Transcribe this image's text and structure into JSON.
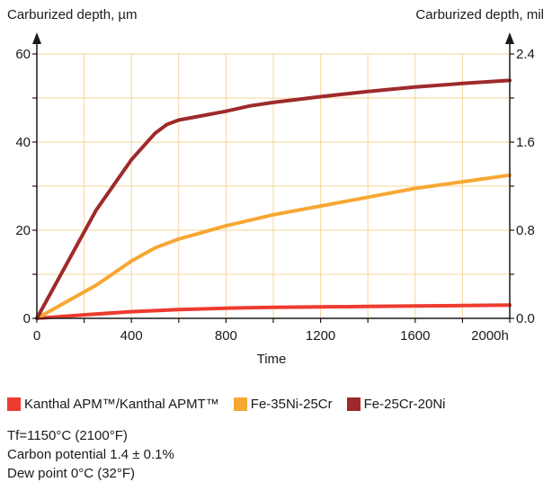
{
  "chart_data": {
    "type": "line",
    "xlabel": "Time",
    "x_unit_suffix": "h",
    "ylabel_left": "Carburized depth, µm",
    "ylabel_right": "Carburized depth, mil",
    "xlim": [
      0,
      2000
    ],
    "ylim": [
      0,
      60
    ],
    "ylim_right": [
      0,
      2.4
    ],
    "x_ticks": [
      0,
      400,
      800,
      1200,
      1600,
      2000
    ],
    "x_tick_labels": [
      "0",
      "400",
      "800",
      "1200",
      "1600",
      "2000h"
    ],
    "y_ticks": [
      0,
      20,
      40,
      60
    ],
    "y_tick_labels": [
      "0",
      "20",
      "40",
      "60"
    ],
    "y_ticks_right": [
      0,
      0.8,
      1.6,
      2.4
    ],
    "y_tick_labels_right": [
      "0.0",
      "0.8",
      "1.6",
      "2.4"
    ],
    "x_gridlines": [
      0,
      200,
      400,
      600,
      800,
      1000,
      1200,
      1400,
      1600,
      1800,
      2000
    ],
    "y_gridlines": [
      0,
      10,
      20,
      30,
      40,
      50,
      60
    ],
    "grid": true,
    "grid_color": "#f6d49a",
    "axis_color": "#1a1a1a",
    "legend_position": "bottom",
    "series": [
      {
        "name": "Kanthal APM™/Kanthal APMT™",
        "color": "#ef3b2f",
        "x": [
          0,
          200,
          400,
          600,
          800,
          1000,
          1200,
          1400,
          1600,
          1800,
          2000
        ],
        "y": [
          0,
          0.8,
          1.5,
          2.0,
          2.3,
          2.5,
          2.6,
          2.7,
          2.8,
          2.9,
          3.0
        ]
      },
      {
        "name": "Fe-35Ni-25Cr",
        "color": "#f7a833",
        "x": [
          0,
          250,
          400,
          500,
          600,
          800,
          1000,
          1200,
          1400,
          1600,
          1800,
          2000
        ],
        "y": [
          0,
          7.5,
          13,
          16,
          18,
          21,
          23.5,
          25.5,
          27.5,
          29.5,
          31,
          32.5
        ]
      },
      {
        "name": "Fe-25Cr-20Ni",
        "color": "#9e2a2b",
        "x": [
          0,
          250,
          400,
          500,
          550,
          600,
          700,
          800,
          900,
          1000,
          1200,
          1400,
          1600,
          1800,
          2000
        ],
        "y": [
          0,
          24.5,
          36,
          42,
          44,
          45,
          46,
          47,
          48.2,
          49,
          50.3,
          51.5,
          52.5,
          53.3,
          54
        ]
      }
    ]
  },
  "notes": [
    "Tf=1150°C (2100°F)",
    "Carbon potential 1.4 ± 0.1%",
    "Dew point 0°C (32°F)"
  ]
}
